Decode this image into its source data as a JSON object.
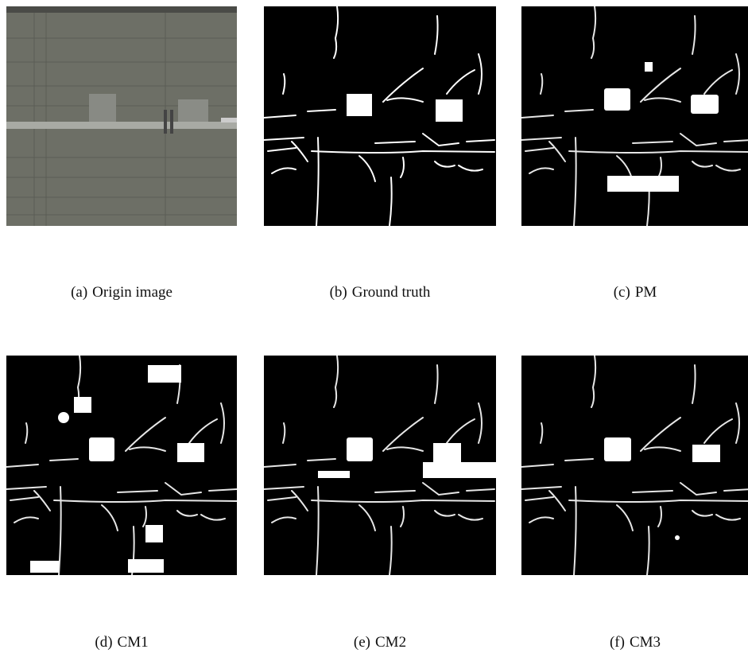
{
  "panels": [
    {
      "label": "(a)",
      "caption": "Origin image"
    },
    {
      "label": "(b)",
      "caption": "Ground truth"
    },
    {
      "label": "(c)",
      "caption": "PM"
    },
    {
      "label": "(d)",
      "caption": "CM1"
    },
    {
      "label": "(e)",
      "caption": "CM2"
    },
    {
      "label": "(f)",
      "caption": "CM3"
    }
  ]
}
